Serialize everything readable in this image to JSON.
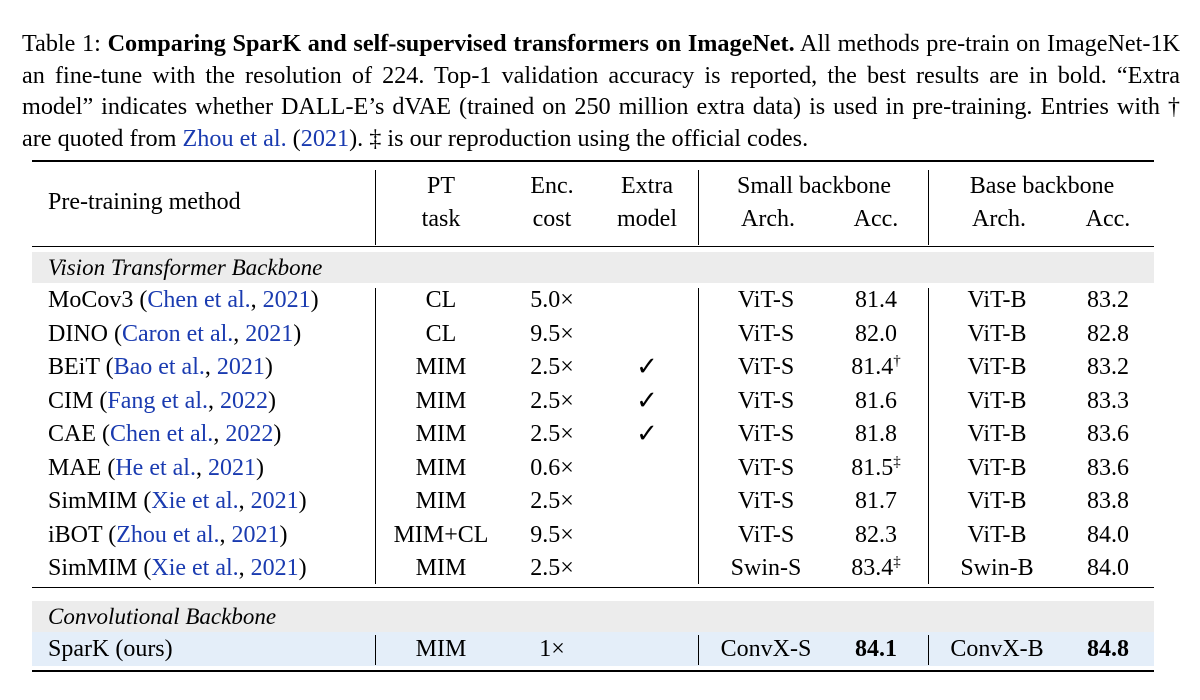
{
  "caption": {
    "label": "Table 1:",
    "title": "Comparing SparK and self-supervised transformers on ImageNet.",
    "body_1": " All methods pre-train on ImageNet-1K an fine-tune with the resolution of 224. Top-1 validation accuracy is reported, the best results are in bold. “Extra model” indicates whether DALL-E’s dVAE (trained on 250 million extra data) is used in pre-training. Entries with † are quoted from ",
    "cite_name": "Zhou et al.",
    "cite_open": " (",
    "cite_year": "2021",
    "body_2": "). ‡ is our reproduction using the official codes."
  },
  "header": {
    "method": "Pre-training method",
    "pt_1": "PT",
    "pt_2": "task",
    "enc_1": "Enc.",
    "enc_2": "cost",
    "extra_1": "Extra",
    "extra_2": "model",
    "small": "Small backbone",
    "base": "Base backbone",
    "arch": "Arch.",
    "acc": "Acc."
  },
  "sections": {
    "vit": "Vision Transformer Backbone",
    "conv": "Convolutional Backbone"
  },
  "rows": [
    {
      "method": "MoCov3",
      "cite": "Chen et al.",
      "year": "2021",
      "task": "CL",
      "cost": "5.0×",
      "extra": "",
      "sarch": "ViT-S",
      "sacc": "81.4",
      "smark": "",
      "barch": "ViT-B",
      "bacc": "83.2"
    },
    {
      "method": "DINO",
      "cite": "Caron et al.",
      "year": "2021",
      "task": "CL",
      "cost": "9.5×",
      "extra": "",
      "sarch": "ViT-S",
      "sacc": "82.0",
      "smark": "",
      "barch": "ViT-B",
      "bacc": "82.8"
    },
    {
      "method": "BEiT",
      "cite": "Bao et al.",
      "year": "2021",
      "task": "MIM",
      "cost": "2.5×",
      "extra": "✓",
      "sarch": "ViT-S",
      "sacc": "81.4",
      "smark": "†",
      "barch": "ViT-B",
      "bacc": "83.2"
    },
    {
      "method": "CIM",
      "cite": "Fang et al.",
      "year": "2022",
      "task": "MIM",
      "cost": "2.5×",
      "extra": "✓",
      "sarch": "ViT-S",
      "sacc": "81.6",
      "smark": "",
      "barch": "ViT-B",
      "bacc": "83.3"
    },
    {
      "method": "CAE",
      "cite": "Chen et al.",
      "year": "2022",
      "task": "MIM",
      "cost": "2.5×",
      "extra": "✓",
      "sarch": "ViT-S",
      "sacc": "81.8",
      "smark": "",
      "barch": "ViT-B",
      "bacc": "83.6"
    },
    {
      "method": "MAE",
      "cite": "He et al.",
      "year": "2021",
      "task": "MIM",
      "cost": "0.6×",
      "extra": "",
      "sarch": "ViT-S",
      "sacc": "81.5",
      "smark": "‡",
      "barch": "ViT-B",
      "bacc": "83.6"
    },
    {
      "method": "SimMIM",
      "cite": "Xie et al.",
      "year": "2021",
      "task": "MIM",
      "cost": "2.5×",
      "extra": "",
      "sarch": "ViT-S",
      "sacc": "81.7",
      "smark": "",
      "barch": "ViT-B",
      "bacc": "83.8"
    },
    {
      "method": "iBOT",
      "cite": "Zhou et al.",
      "year": "2021",
      "task": "MIM+CL",
      "cost": "9.5×",
      "extra": "",
      "sarch": "ViT-S",
      "sacc": "82.3",
      "smark": "",
      "barch": "ViT-B",
      "bacc": "84.0"
    },
    {
      "method": "SimMIM",
      "cite": "Xie et al.",
      "year": "2021",
      "task": "MIM",
      "cost": "2.5×",
      "extra": "",
      "sarch": "Swin-S",
      "sacc": "83.4",
      "smark": "‡",
      "barch": "Swin-B",
      "bacc": "84.0"
    }
  ],
  "spark": {
    "method": "SparK (ours)",
    "task": "MIM",
    "cost": "1×",
    "sarch": "ConvX-S",
    "sacc": "84.1",
    "barch": "ConvX-B",
    "bacc": "84.8"
  },
  "colors": {
    "section_band": "#ececec",
    "highlight_band": "#e4eef9",
    "cite": "#1a3bb0"
  }
}
